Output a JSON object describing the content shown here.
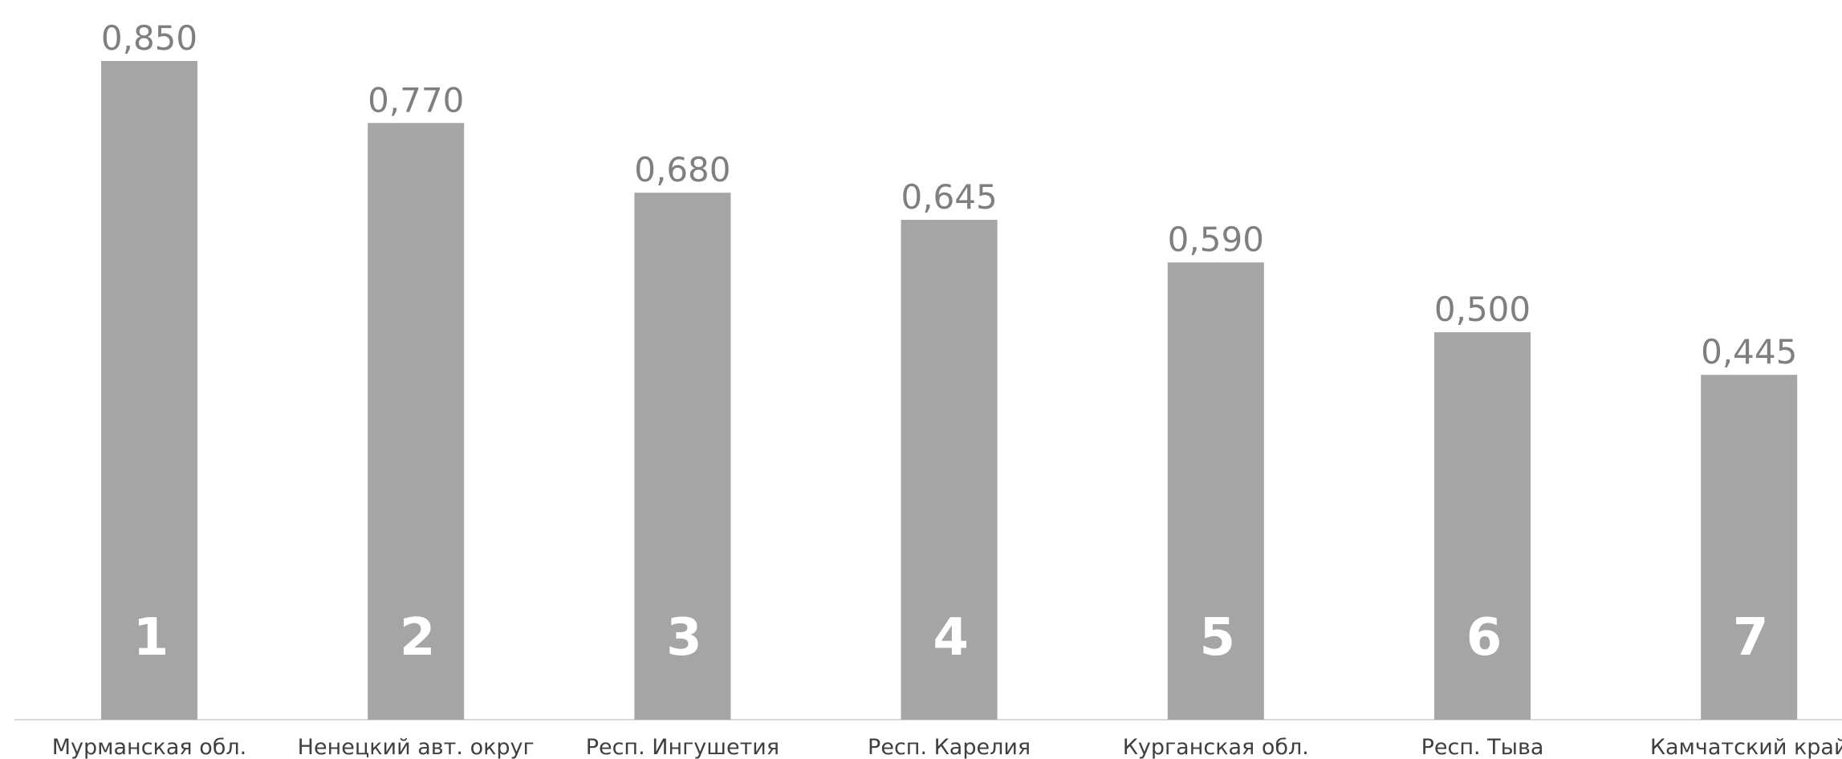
{
  "chart_data": {
    "type": "bar",
    "categories": [
      "Мурманская обл.",
      "Ненецкий авт. округ",
      "Респ. Ингушетия",
      "Респ. Карелия",
      "Курганская обл.",
      "Респ. Тыва",
      "Камчатский край"
    ],
    "values": [
      0.85,
      0.77,
      0.68,
      0.645,
      0.59,
      0.5,
      0.445
    ],
    "value_labels": [
      "0,850",
      "0,770",
      "0,680",
      "0,645",
      "0,590",
      "0,500",
      "0,445"
    ],
    "rank_labels": [
      "1",
      "2",
      "3",
      "4",
      "5",
      "6",
      "7"
    ],
    "ylim": [
      0,
      0.85
    ],
    "grid": false,
    "legend": "none",
    "colors": {
      "bar": "#a5a5a5",
      "value_label": "#7f7f7f",
      "rank_label": "#ffffff",
      "category_label": "#3f3f3f",
      "axis": "#d9d9d9"
    }
  }
}
